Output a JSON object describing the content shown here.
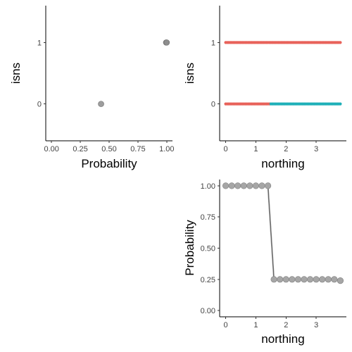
{
  "chart_data": [
    {
      "type": "scatter",
      "xlabel": "Probability",
      "ylabel": "isns",
      "xlim": [
        -0.05,
        1.05
      ],
      "ylim": [
        -0.6,
        1.6
      ],
      "xticks": [
        0,
        0.25,
        0.5,
        0.75,
        1
      ],
      "xtick_labels": [
        "0.00",
        "0.25",
        "0.50",
        "0.75",
        "1.00"
      ],
      "yticks": [
        0,
        1
      ],
      "ytick_labels": [
        "0",
        "1"
      ],
      "point_color": "#8c8c8c",
      "points": [
        {
          "x": 0.43,
          "y": 0
        },
        {
          "x": 0.995,
          "y": 1
        },
        {
          "x": 1.0,
          "y": 1
        }
      ]
    },
    {
      "type": "scatter",
      "xlabel": "northing",
      "ylabel": "isns",
      "xlim": [
        -0.2,
        4.0
      ],
      "ylim": [
        -0.6,
        1.6
      ],
      "xticks": [
        0,
        1,
        2,
        3
      ],
      "xtick_labels": [
        "0",
        "1",
        "2",
        "3"
      ],
      "yticks": [
        0,
        1
      ],
      "ytick_labels": [
        "0",
        "1"
      ],
      "series": [
        {
          "color": "#E8625A",
          "segments": [
            {
              "y": 1,
              "x_from": 0,
              "x_to": 3.8
            },
            {
              "y": 0,
              "x_from": 0,
              "x_to": 1.45
            }
          ]
        },
        {
          "color": "#1FB0B8",
          "segments": [
            {
              "y": 0,
              "x_from": 1.5,
              "x_to": 3.8
            }
          ]
        }
      ],
      "point_spacing": 0.05
    },
    {
      "type": "line",
      "xlabel": "northing",
      "ylabel": "Probability",
      "xlim": [
        -0.2,
        4.0
      ],
      "ylim": [
        -0.05,
        1.05
      ],
      "xticks": [
        0,
        1,
        2,
        3
      ],
      "xtick_labels": [
        "0",
        "1",
        "2",
        "3"
      ],
      "yticks": [
        0,
        0.25,
        0.5,
        0.75,
        1
      ],
      "ytick_labels": [
        "0.00",
        "0.25",
        "0.50",
        "0.75",
        "1.00"
      ],
      "line_color": "#999999",
      "point_color": "#a6a6a6",
      "points": [
        {
          "x": 0.0,
          "y": 1.0
        },
        {
          "x": 0.2,
          "y": 1.0
        },
        {
          "x": 0.4,
          "y": 1.0
        },
        {
          "x": 0.6,
          "y": 1.0
        },
        {
          "x": 0.8,
          "y": 1.0
        },
        {
          "x": 1.0,
          "y": 1.0
        },
        {
          "x": 1.2,
          "y": 1.0
        },
        {
          "x": 1.4,
          "y": 1.0
        },
        {
          "x": 1.6,
          "y": 0.25
        },
        {
          "x": 1.8,
          "y": 0.25
        },
        {
          "x": 2.0,
          "y": 0.25
        },
        {
          "x": 2.2,
          "y": 0.25
        },
        {
          "x": 2.4,
          "y": 0.25
        },
        {
          "x": 2.6,
          "y": 0.25
        },
        {
          "x": 2.8,
          "y": 0.25
        },
        {
          "x": 3.0,
          "y": 0.25
        },
        {
          "x": 3.2,
          "y": 0.25
        },
        {
          "x": 3.4,
          "y": 0.25
        },
        {
          "x": 3.6,
          "y": 0.25
        },
        {
          "x": 3.8,
          "y": 0.24
        }
      ]
    }
  ]
}
